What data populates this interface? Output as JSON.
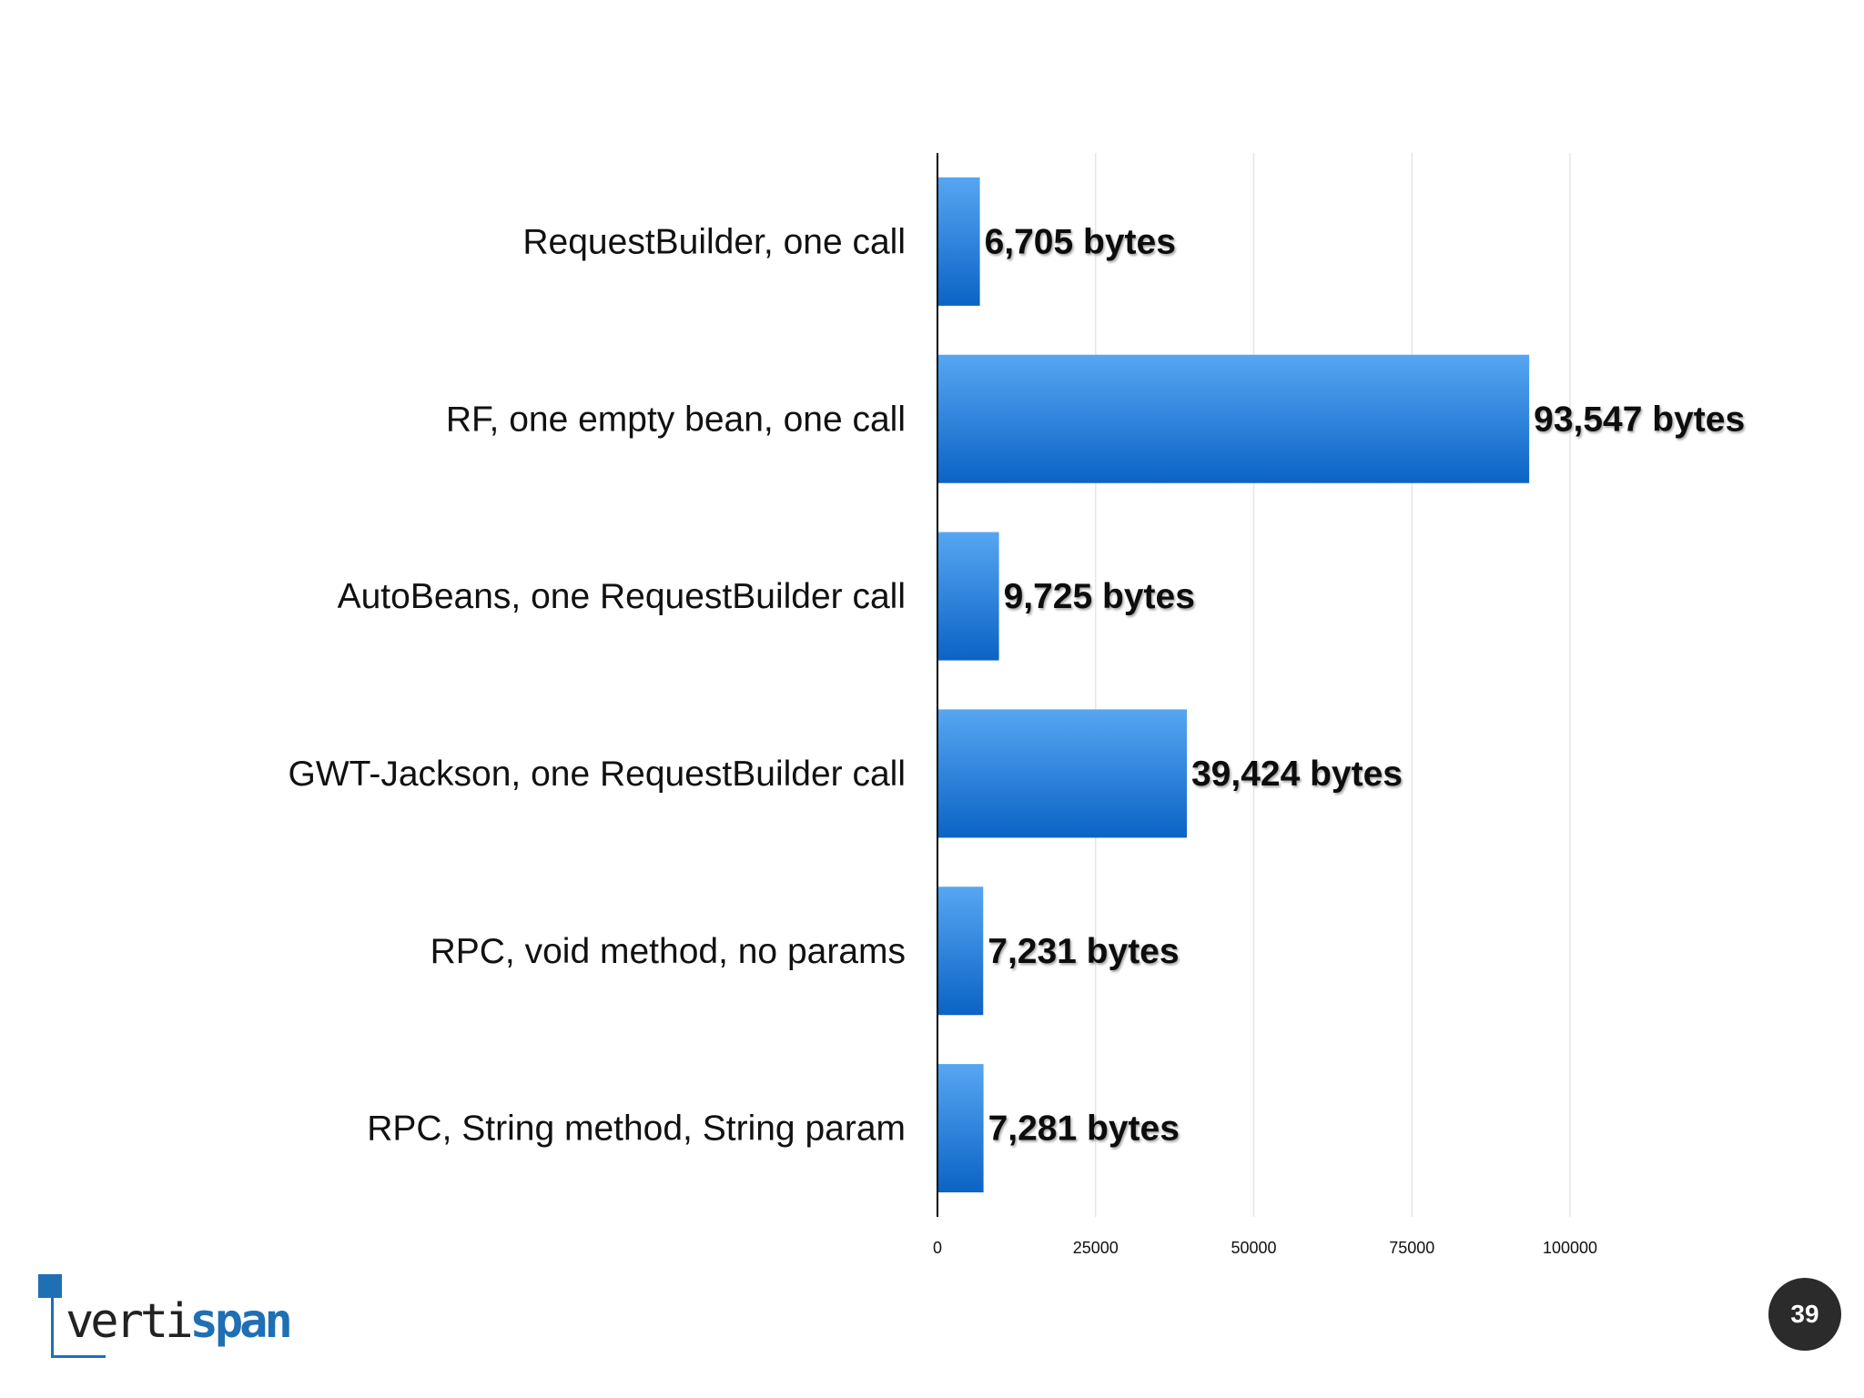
{
  "colors": {
    "bar_top": "#56a6f2",
    "bar_bottom": "#0b63c5",
    "gridline": "#e6e6e6",
    "axis": "#000000",
    "logo_blue": "#1f6fb5",
    "logo_dark": "#222222",
    "badge_bg": "#2b2b2b"
  },
  "chart_data": {
    "type": "bar",
    "orientation": "horizontal",
    "categories": [
      "RequestBuilder, one call",
      "RF, one empty bean, one call",
      "AutoBeans, one RequestBuilder call",
      "GWT-Jackson, one RequestBuilder call",
      "RPC, void method, no params",
      "RPC, String method, String param"
    ],
    "values": [
      6705,
      93547,
      9725,
      39424,
      7231,
      7281
    ],
    "data_labels": [
      "6,705 bytes",
      "93,547 bytes",
      "9,725 bytes",
      "39,424 bytes",
      "7,231 bytes",
      "7,281 bytes"
    ],
    "x_ticks": [
      0,
      25000,
      50000,
      75000,
      100000
    ],
    "x_tick_labels": [
      "0",
      "25000",
      "50000",
      "75000",
      "100000"
    ],
    "xlim": [
      0,
      100000
    ],
    "grid": true,
    "legend": "none"
  },
  "logo": {
    "text_light": "verti",
    "text_bold": "span"
  },
  "page_number": "39"
}
